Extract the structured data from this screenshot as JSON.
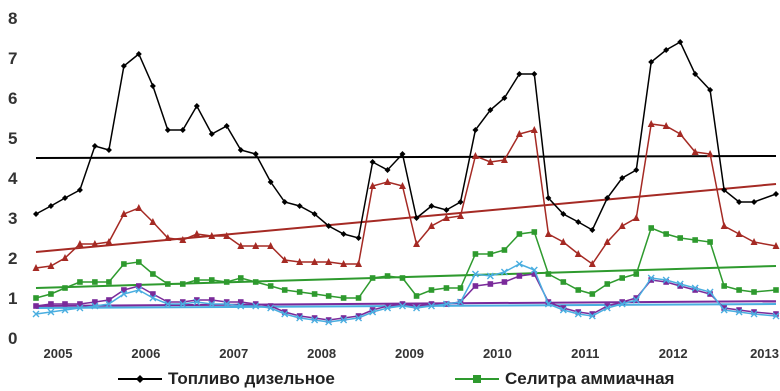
{
  "chart_data": {
    "type": "line",
    "title": "",
    "xlabel": "",
    "ylabel": "",
    "ylim": [
      0,
      8
    ],
    "yticks": [
      0,
      1,
      2,
      3,
      4,
      5,
      6,
      7,
      8
    ],
    "xlim": [
      2004.75,
      2013.17
    ],
    "xtick_labels": [
      "2005",
      "2006",
      "2007",
      "2008",
      "2009",
      "2010",
      "2011",
      "2012",
      "2013"
    ],
    "grid": false,
    "legend": {
      "position": "bottom"
    },
    "series": [
      {
        "name": "Топливо дизельное",
        "color": "#000000",
        "marker": "diamond",
        "points": [
          [
            2004.75,
            3.1
          ],
          [
            2004.92,
            3.3
          ],
          [
            2005.08,
            3.5
          ],
          [
            2005.25,
            3.7
          ],
          [
            2005.42,
            4.8
          ],
          [
            2005.58,
            4.7
          ],
          [
            2005.75,
            6.8
          ],
          [
            2005.92,
            7.1
          ],
          [
            2006.08,
            6.3
          ],
          [
            2006.25,
            5.2
          ],
          [
            2006.42,
            5.2
          ],
          [
            2006.58,
            5.8
          ],
          [
            2006.75,
            5.1
          ],
          [
            2006.92,
            5.3
          ],
          [
            2007.08,
            4.7
          ],
          [
            2007.25,
            4.6
          ],
          [
            2007.42,
            3.9
          ],
          [
            2007.58,
            3.4
          ],
          [
            2007.75,
            3.3
          ],
          [
            2007.92,
            3.1
          ],
          [
            2008.08,
            2.8
          ],
          [
            2008.25,
            2.6
          ],
          [
            2008.42,
            2.5
          ],
          [
            2008.58,
            4.4
          ],
          [
            2008.75,
            4.2
          ],
          [
            2008.92,
            4.6
          ],
          [
            2009.08,
            3.0
          ],
          [
            2009.25,
            3.3
          ],
          [
            2009.42,
            3.2
          ],
          [
            2009.58,
            3.4
          ],
          [
            2009.75,
            5.2
          ],
          [
            2009.92,
            5.7
          ],
          [
            2010.08,
            6.0
          ],
          [
            2010.25,
            6.6
          ],
          [
            2010.42,
            6.6
          ],
          [
            2010.58,
            3.5
          ],
          [
            2010.75,
            3.1
          ],
          [
            2010.92,
            2.9
          ],
          [
            2011.08,
            2.7
          ],
          [
            2011.25,
            3.5
          ],
          [
            2011.42,
            4.0
          ],
          [
            2011.58,
            4.2
          ],
          [
            2011.75,
            6.9
          ],
          [
            2011.92,
            7.2
          ],
          [
            2012.08,
            7.4
          ],
          [
            2012.25,
            6.6
          ],
          [
            2012.42,
            6.2
          ],
          [
            2012.58,
            3.7
          ],
          [
            2012.75,
            3.4
          ],
          [
            2012.92,
            3.4
          ],
          [
            2013.17,
            3.6
          ]
        ],
        "trend": [
          [
            2004.75,
            4.5
          ],
          [
            2013.17,
            4.55
          ]
        ]
      },
      {
        "name": "",
        "color": "#a52a24",
        "marker": "triangle",
        "points": [
          [
            2004.75,
            1.75
          ],
          [
            2004.92,
            1.8
          ],
          [
            2005.08,
            2.0
          ],
          [
            2005.25,
            2.35
          ],
          [
            2005.42,
            2.35
          ],
          [
            2005.58,
            2.4
          ],
          [
            2005.75,
            3.1
          ],
          [
            2005.92,
            3.25
          ],
          [
            2006.08,
            2.9
          ],
          [
            2006.25,
            2.5
          ],
          [
            2006.42,
            2.45
          ],
          [
            2006.58,
            2.6
          ],
          [
            2006.75,
            2.55
          ],
          [
            2006.92,
            2.55
          ],
          [
            2007.08,
            2.3
          ],
          [
            2007.25,
            2.3
          ],
          [
            2007.42,
            2.3
          ],
          [
            2007.58,
            1.95
          ],
          [
            2007.75,
            1.9
          ],
          [
            2007.92,
            1.9
          ],
          [
            2008.08,
            1.9
          ],
          [
            2008.25,
            1.85
          ],
          [
            2008.42,
            1.85
          ],
          [
            2008.58,
            3.8
          ],
          [
            2008.75,
            3.9
          ],
          [
            2008.92,
            3.8
          ],
          [
            2009.08,
            2.35
          ],
          [
            2009.25,
            2.8
          ],
          [
            2009.42,
            3.0
          ],
          [
            2009.58,
            3.05
          ],
          [
            2009.75,
            4.55
          ],
          [
            2009.92,
            4.4
          ],
          [
            2010.08,
            4.45
          ],
          [
            2010.25,
            5.1
          ],
          [
            2010.42,
            5.2
          ],
          [
            2010.58,
            2.6
          ],
          [
            2010.75,
            2.4
          ],
          [
            2010.92,
            2.1
          ],
          [
            2011.08,
            1.85
          ],
          [
            2011.25,
            2.4
          ],
          [
            2011.42,
            2.8
          ],
          [
            2011.58,
            3.0
          ],
          [
            2011.75,
            5.35
          ],
          [
            2011.92,
            5.3
          ],
          [
            2012.08,
            5.1
          ],
          [
            2012.25,
            4.65
          ],
          [
            2012.42,
            4.6
          ],
          [
            2012.58,
            2.8
          ],
          [
            2012.75,
            2.6
          ],
          [
            2012.92,
            2.4
          ],
          [
            2013.17,
            2.3
          ]
        ],
        "trend": [
          [
            2004.75,
            2.15
          ],
          [
            2013.17,
            3.85
          ]
        ]
      },
      {
        "name": "Селитра аммиачная",
        "color": "#2e9a2e",
        "marker": "square",
        "points": [
          [
            2004.75,
            1.0
          ],
          [
            2004.92,
            1.1
          ],
          [
            2005.08,
            1.25
          ],
          [
            2005.25,
            1.4
          ],
          [
            2005.42,
            1.4
          ],
          [
            2005.58,
            1.4
          ],
          [
            2005.75,
            1.85
          ],
          [
            2005.92,
            1.9
          ],
          [
            2006.08,
            1.6
          ],
          [
            2006.25,
            1.35
          ],
          [
            2006.42,
            1.35
          ],
          [
            2006.58,
            1.45
          ],
          [
            2006.75,
            1.45
          ],
          [
            2006.92,
            1.4
          ],
          [
            2007.08,
            1.5
          ],
          [
            2007.25,
            1.4
          ],
          [
            2007.42,
            1.3
          ],
          [
            2007.58,
            1.2
          ],
          [
            2007.75,
            1.15
          ],
          [
            2007.92,
            1.1
          ],
          [
            2008.08,
            1.05
          ],
          [
            2008.25,
            1.0
          ],
          [
            2008.42,
            1.0
          ],
          [
            2008.58,
            1.5
          ],
          [
            2008.75,
            1.55
          ],
          [
            2008.92,
            1.5
          ],
          [
            2009.08,
            1.05
          ],
          [
            2009.25,
            1.2
          ],
          [
            2009.42,
            1.25
          ],
          [
            2009.58,
            1.25
          ],
          [
            2009.75,
            2.1
          ],
          [
            2009.92,
            2.1
          ],
          [
            2010.08,
            2.2
          ],
          [
            2010.25,
            2.6
          ],
          [
            2010.42,
            2.65
          ],
          [
            2010.58,
            1.6
          ],
          [
            2010.75,
            1.4
          ],
          [
            2010.92,
            1.2
          ],
          [
            2011.08,
            1.1
          ],
          [
            2011.25,
            1.35
          ],
          [
            2011.42,
            1.5
          ],
          [
            2011.58,
            1.6
          ],
          [
            2011.75,
            2.75
          ],
          [
            2011.92,
            2.6
          ],
          [
            2012.08,
            2.5
          ],
          [
            2012.25,
            2.45
          ],
          [
            2012.42,
            2.4
          ],
          [
            2012.58,
            1.3
          ],
          [
            2012.75,
            1.2
          ],
          [
            2012.92,
            1.15
          ],
          [
            2013.17,
            1.2
          ]
        ],
        "trend": [
          [
            2004.75,
            1.25
          ],
          [
            2013.17,
            1.8
          ]
        ]
      },
      {
        "name": "",
        "color": "#7a2a9a",
        "marker": "square",
        "points": [
          [
            2004.75,
            0.8
          ],
          [
            2004.92,
            0.85
          ],
          [
            2005.08,
            0.85
          ],
          [
            2005.25,
            0.85
          ],
          [
            2005.42,
            0.9
          ],
          [
            2005.58,
            0.95
          ],
          [
            2005.75,
            1.2
          ],
          [
            2005.92,
            1.3
          ],
          [
            2006.08,
            1.1
          ],
          [
            2006.25,
            0.9
          ],
          [
            2006.42,
            0.9
          ],
          [
            2006.58,
            0.95
          ],
          [
            2006.75,
            0.95
          ],
          [
            2006.92,
            0.9
          ],
          [
            2007.08,
            0.9
          ],
          [
            2007.25,
            0.85
          ],
          [
            2007.42,
            0.8
          ],
          [
            2007.58,
            0.65
          ],
          [
            2007.75,
            0.55
          ],
          [
            2007.92,
            0.5
          ],
          [
            2008.08,
            0.45
          ],
          [
            2008.25,
            0.5
          ],
          [
            2008.42,
            0.55
          ],
          [
            2008.58,
            0.7
          ],
          [
            2008.75,
            0.8
          ],
          [
            2008.92,
            0.85
          ],
          [
            2009.08,
            0.8
          ],
          [
            2009.25,
            0.85
          ],
          [
            2009.42,
            0.85
          ],
          [
            2009.58,
            0.9
          ],
          [
            2009.75,
            1.3
          ],
          [
            2009.92,
            1.35
          ],
          [
            2010.08,
            1.4
          ],
          [
            2010.25,
            1.55
          ],
          [
            2010.42,
            1.6
          ],
          [
            2010.58,
            0.9
          ],
          [
            2010.75,
            0.75
          ],
          [
            2010.92,
            0.65
          ],
          [
            2011.08,
            0.6
          ],
          [
            2011.25,
            0.8
          ],
          [
            2011.42,
            0.9
          ],
          [
            2011.58,
            1.0
          ],
          [
            2011.75,
            1.45
          ],
          [
            2011.92,
            1.4
          ],
          [
            2012.08,
            1.3
          ],
          [
            2012.25,
            1.2
          ],
          [
            2012.42,
            1.1
          ],
          [
            2012.58,
            0.75
          ],
          [
            2012.75,
            0.7
          ],
          [
            2012.92,
            0.65
          ],
          [
            2013.17,
            0.6
          ]
        ],
        "trend": [
          [
            2004.75,
            0.8
          ],
          [
            2013.17,
            0.92
          ]
        ]
      },
      {
        "name": "",
        "color": "#4aaee0",
        "marker": "cross",
        "points": [
          [
            2004.75,
            0.6
          ],
          [
            2004.92,
            0.65
          ],
          [
            2005.08,
            0.7
          ],
          [
            2005.25,
            0.75
          ],
          [
            2005.42,
            0.8
          ],
          [
            2005.58,
            0.85
          ],
          [
            2005.75,
            1.1
          ],
          [
            2005.92,
            1.2
          ],
          [
            2006.08,
            1.0
          ],
          [
            2006.25,
            0.85
          ],
          [
            2006.42,
            0.85
          ],
          [
            2006.58,
            0.9
          ],
          [
            2006.75,
            0.85
          ],
          [
            2006.92,
            0.85
          ],
          [
            2007.08,
            0.8
          ],
          [
            2007.25,
            0.8
          ],
          [
            2007.42,
            0.75
          ],
          [
            2007.58,
            0.6
          ],
          [
            2007.75,
            0.5
          ],
          [
            2007.92,
            0.45
          ],
          [
            2008.08,
            0.4
          ],
          [
            2008.25,
            0.45
          ],
          [
            2008.42,
            0.5
          ],
          [
            2008.58,
            0.65
          ],
          [
            2008.75,
            0.75
          ],
          [
            2008.92,
            0.8
          ],
          [
            2009.08,
            0.75
          ],
          [
            2009.25,
            0.8
          ],
          [
            2009.42,
            0.85
          ],
          [
            2009.58,
            0.9
          ],
          [
            2009.75,
            1.6
          ],
          [
            2009.92,
            1.55
          ],
          [
            2010.08,
            1.65
          ],
          [
            2010.25,
            1.85
          ],
          [
            2010.42,
            1.7
          ],
          [
            2010.58,
            0.85
          ],
          [
            2010.75,
            0.7
          ],
          [
            2010.92,
            0.6
          ],
          [
            2011.08,
            0.55
          ],
          [
            2011.25,
            0.75
          ],
          [
            2011.42,
            0.85
          ],
          [
            2011.58,
            0.95
          ],
          [
            2011.75,
            1.5
          ],
          [
            2011.92,
            1.45
          ],
          [
            2012.08,
            1.35
          ],
          [
            2012.25,
            1.25
          ],
          [
            2012.42,
            1.15
          ],
          [
            2012.58,
            0.7
          ],
          [
            2012.75,
            0.65
          ],
          [
            2012.92,
            0.6
          ],
          [
            2013.17,
            0.55
          ]
        ],
        "trend": [
          [
            2004.75,
            0.75
          ],
          [
            2013.17,
            0.85
          ]
        ]
      }
    ]
  }
}
